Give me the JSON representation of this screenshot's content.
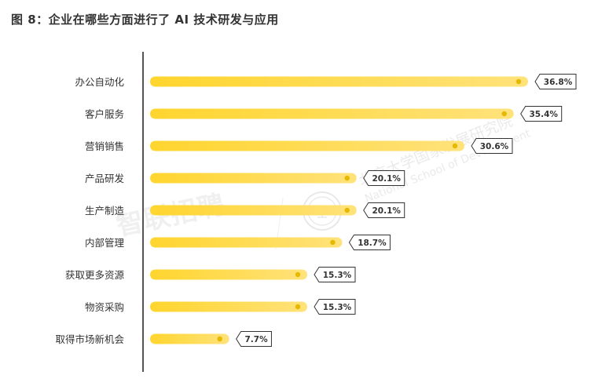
{
  "title": "图 8：企业在哪些方面进行了 AI 技术研发与应用",
  "watermarks": {
    "left": "智联招聘",
    "right_cn": "北京大学国家发展研究院",
    "right_en": "National School of Development"
  },
  "colors": {
    "bar": "#FFD52E",
    "bar_light": "#FFE27A",
    "bar_dot": "#E6B800",
    "axis": "#555555",
    "label_text": "#333333",
    "tag_border": "#333333"
  },
  "chart_data": {
    "type": "bar",
    "orientation": "horizontal",
    "categories": [
      "办公自动化",
      "客户服务",
      "营销销售",
      "产品研发",
      "生产制造",
      "内部管理",
      "获取更多资源",
      "物资采购",
      "取得市场新机会"
    ],
    "values": [
      36.8,
      35.4,
      30.6,
      20.1,
      20.1,
      18.7,
      15.3,
      15.3,
      7.7
    ],
    "value_labels": [
      "36.8%",
      "35.4%",
      "30.6%",
      "20.1%",
      "20.1%",
      "18.7%",
      "15.3%",
      "15.3%",
      "7.7%"
    ],
    "unit": "%",
    "xlim": [
      0,
      40
    ],
    "grid": false,
    "legend": "none"
  }
}
